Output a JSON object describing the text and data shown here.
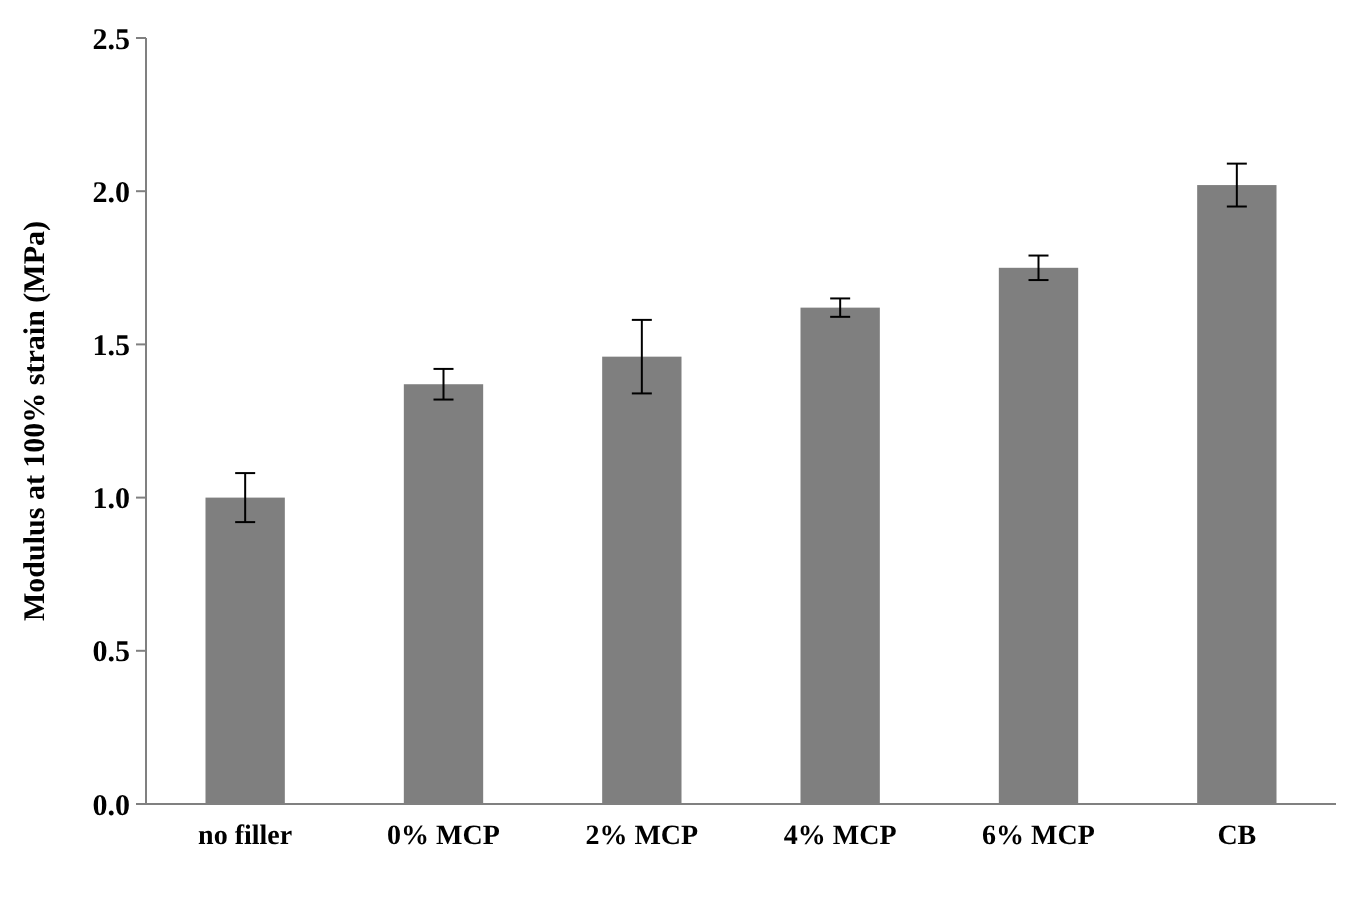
{
  "chart_data": {
    "type": "bar",
    "ylabel": "Modulus at 100% strain (MPa)",
    "categories": [
      "no filler",
      "0% MCP",
      "2% MCP",
      "4% MCP",
      "6% MCP",
      "CB"
    ],
    "values": [
      1.0,
      1.37,
      1.46,
      1.62,
      1.75,
      2.02
    ],
    "errors": [
      0.08,
      0.05,
      0.12,
      0.03,
      0.04,
      0.07
    ],
    "color": "#7f7f7f",
    "ylim": [
      0,
      2.5
    ],
    "yticks": [
      {
        "value": 0,
        "label": "0.0"
      },
      {
        "value": 0.5,
        "label": "0.5"
      },
      {
        "value": 1,
        "label": "1.0"
      },
      {
        "value": 1.5,
        "label": "1.5"
      },
      {
        "value": 2,
        "label": "2.0"
      },
      {
        "value": 2.5,
        "label": "2.5"
      }
    ],
    "grid": false
  }
}
